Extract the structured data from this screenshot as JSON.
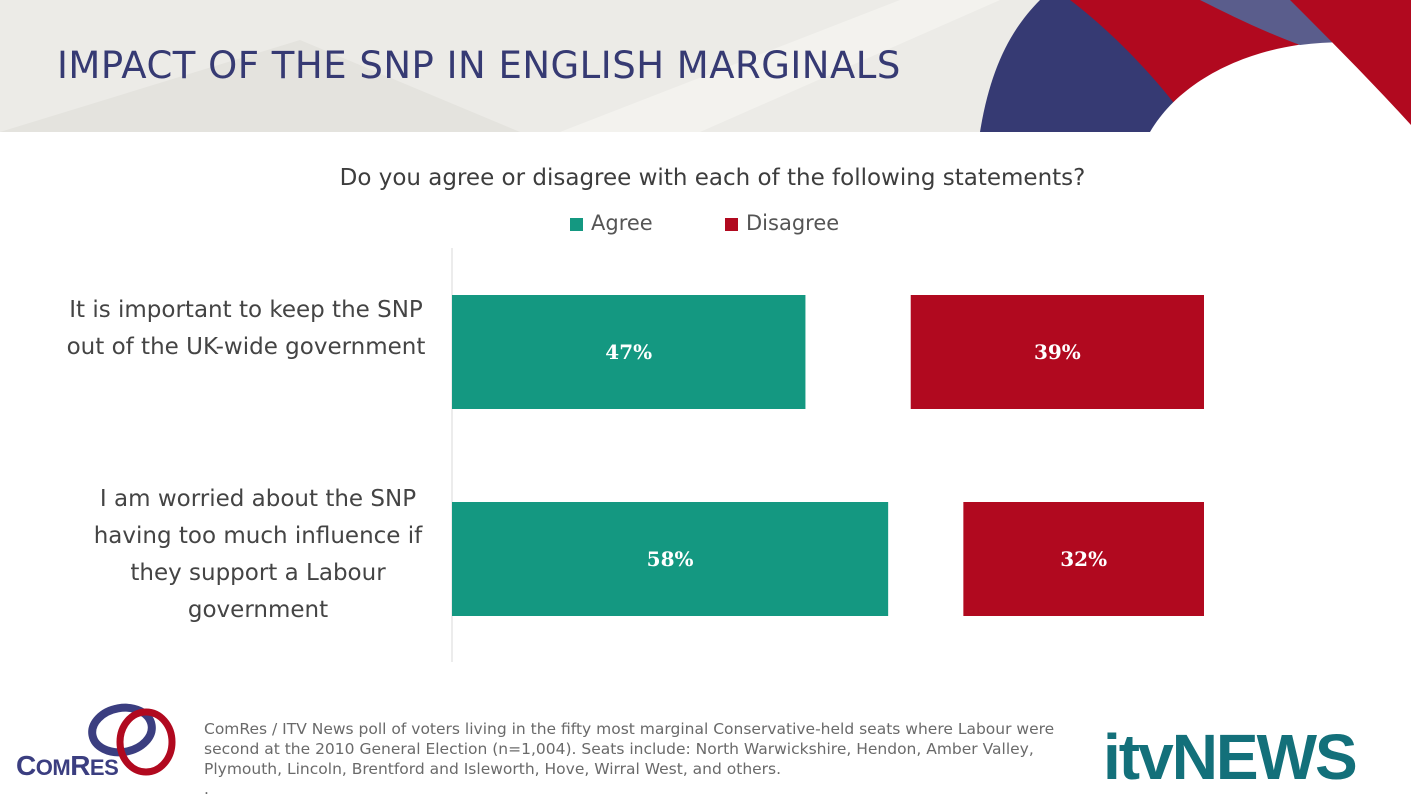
{
  "header": {
    "title": "IMPACT OF THE SNP IN ENGLISH MARGINALS"
  },
  "chart_data": {
    "type": "bar",
    "orientation": "horizontal",
    "title": "Do you agree or disagree with each of the following statements?",
    "categories": [
      "It is important to keep the SNP out of the UK-wide government",
      "I am worried about the SNP having too much influence if they support a Labour government"
    ],
    "series": [
      {
        "name": "Agree",
        "values": [
          47,
          58
        ],
        "labels": [
          "47%",
          "58%"
        ],
        "color": "#149881"
      },
      {
        "name": "Disagree",
        "values": [
          39,
          32
        ],
        "labels": [
          "39%",
          "32%"
        ],
        "color": "#b1091f"
      }
    ],
    "legend": "top",
    "grid": false
  },
  "footnote": {
    "text": "ComRes / ITV News poll of voters living in the fifty most marginal Conservative-held seats where Labour were second at the 2010 General Election (n=1,004). Seats include: North Warwickshire, Hendon, Amber Valley, Plymouth, Lincoln, Brentford and Isleworth, Hove, Wirral West, and others.",
    "trailing": "."
  },
  "logos": {
    "comres": {
      "big1": "C",
      "small1": "OM",
      "big2": "R",
      "small2": "ES"
    },
    "itv": "itvNEWS"
  },
  "colors": {
    "title": "#363a73",
    "agree": "#149881",
    "disagree": "#b1091f",
    "brand_navy": "#363a73",
    "brand_red": "#b1091f",
    "itv_teal": "#13707a"
  }
}
